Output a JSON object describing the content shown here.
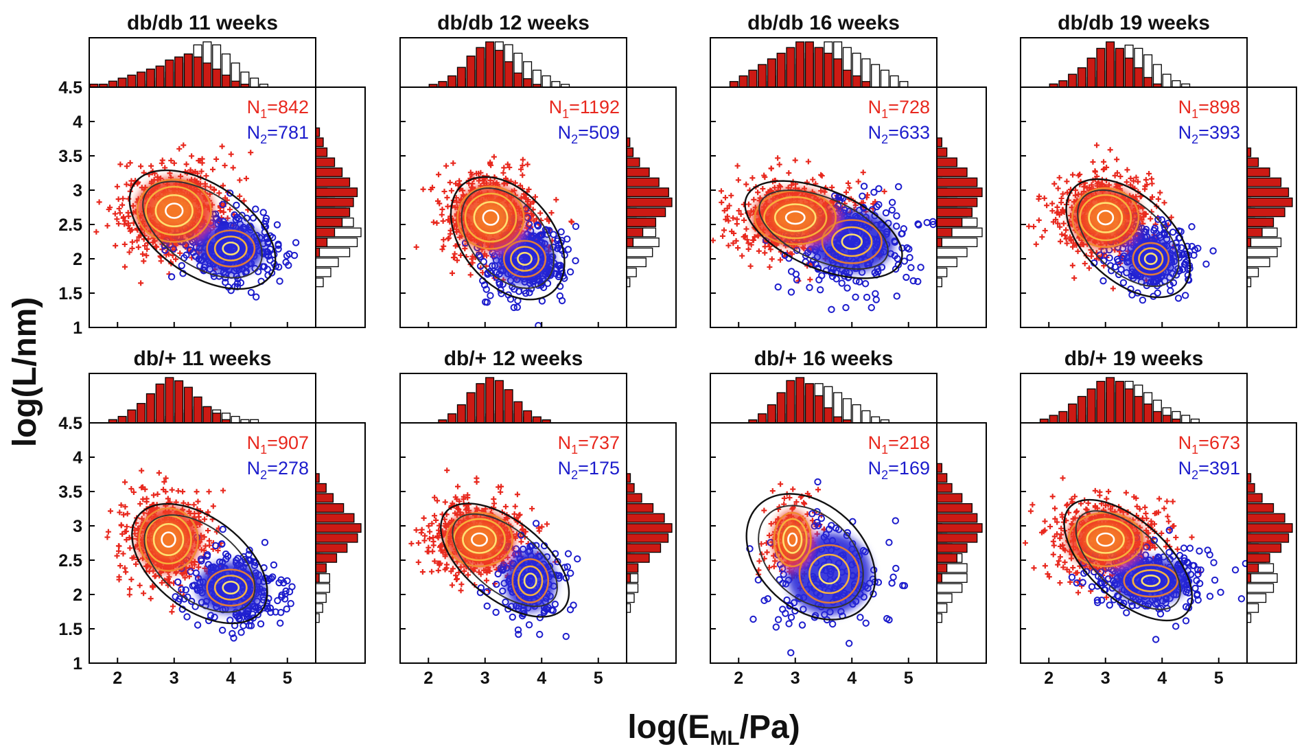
{
  "figure": {
    "ylabel": "log(L/nm)",
    "xlabel": {
      "prefix": "log(E",
      "sub": "ML",
      "suffix": "/Pa)"
    },
    "xticks": [
      "2",
      "3",
      "4",
      "5"
    ],
    "yticks": [
      "1",
      "1.5",
      "2",
      "2.5",
      "3",
      "3.5",
      "4",
      "4.5"
    ]
  },
  "colors": {
    "group1": "#e8281e",
    "group2": "#1c1ccc",
    "hist1": "#cc1a14",
    "hist2": "#ffffff",
    "axis": "#000000",
    "contour_inner": "#ffe070",
    "contour_outer": "#111111"
  },
  "chart_data": [
    {
      "type": "scatter",
      "title": "db/db 11 weeks",
      "xlim": [
        1.5,
        5.5
      ],
      "ylim": [
        1,
        4.5
      ],
      "n1_label": "N",
      "n1_sub": "1",
      "n1_value": "=842",
      "n2_label": "N",
      "n2_sub": "2",
      "n2_value": "=781",
      "N1": 842,
      "N2": 781,
      "c1": [
        3.0,
        2.7
      ],
      "c2": [
        4.0,
        2.15
      ],
      "s1": [
        0.5,
        0.35
      ],
      "s2": [
        0.4,
        0.25
      ],
      "xhist1": [
        1,
        1,
        2,
        3,
        4,
        5,
        6,
        7,
        9,
        10,
        11,
        10,
        8,
        6,
        4,
        2,
        1,
        0,
        0,
        0,
        0,
        0,
        0,
        0
      ],
      "xhist2": [
        0,
        0,
        0,
        0,
        0,
        1,
        2,
        3,
        5,
        8,
        11,
        14,
        15,
        14,
        11,
        8,
        5,
        3,
        1,
        0,
        0,
        0,
        0,
        0
      ],
      "yhist1": [
        0,
        0,
        0,
        0,
        0,
        0,
        0,
        1,
        3,
        5,
        7,
        9,
        10,
        11,
        9,
        7,
        5,
        3,
        2,
        1,
        0,
        0,
        0,
        0
      ],
      "yhist2": [
        0,
        0,
        0,
        0,
        2,
        4,
        6,
        9,
        11,
        12,
        10,
        8,
        5,
        3,
        1,
        0,
        0,
        0,
        0,
        0,
        0,
        0,
        0,
        0
      ]
    },
    {
      "type": "scatter",
      "title": "db/db 12 weeks",
      "xlim": [
        1.5,
        5.5
      ],
      "ylim": [
        1,
        4.5
      ],
      "n1_label": "N",
      "n1_sub": "1",
      "n1_value": "=1192",
      "n2_label": "N",
      "n2_sub": "2",
      "n2_value": "=509",
      "N1": 1192,
      "N2": 509,
      "c1": [
        3.1,
        2.6
      ],
      "c2": [
        3.7,
        2.0
      ],
      "s1": [
        0.45,
        0.35
      ],
      "s2": [
        0.35,
        0.25
      ],
      "xhist1": [
        0,
        0,
        0,
        1,
        2,
        4,
        7,
        11,
        14,
        16,
        13,
        9,
        5,
        3,
        1,
        0,
        0,
        0,
        0,
        0,
        0,
        0,
        0,
        0
      ],
      "xhist2": [
        0,
        0,
        0,
        0,
        0,
        1,
        3,
        6,
        10,
        14,
        16,
        15,
        12,
        9,
        6,
        4,
        2,
        1,
        0,
        0,
        0,
        0,
        0,
        0
      ],
      "yhist1": [
        0,
        0,
        0,
        0,
        0,
        0,
        0,
        0,
        2,
        5,
        9,
        12,
        14,
        13,
        10,
        7,
        4,
        2,
        1,
        0,
        0,
        0,
        0,
        0
      ],
      "yhist2": [
        0,
        0,
        0,
        0,
        1,
        3,
        6,
        8,
        10,
        9,
        6,
        3,
        1,
        0,
        0,
        0,
        0,
        0,
        0,
        0,
        0,
        0,
        0,
        0
      ]
    },
    {
      "type": "scatter",
      "title": "db/db 16 weeks",
      "xlim": [
        1.5,
        5.5
      ],
      "ylim": [
        1,
        4.5
      ],
      "n1_label": "N",
      "n1_sub": "1",
      "n1_value": "=728",
      "n2_label": "N",
      "n2_sub": "2",
      "n2_value": "=633",
      "N1": 728,
      "N2": 633,
      "c1": [
        3.0,
        2.6
      ],
      "c2": [
        4.0,
        2.25
      ],
      "s1": [
        0.55,
        0.3
      ],
      "s2": [
        0.5,
        0.3
      ],
      "xhist1": [
        0,
        0,
        1,
        2,
        3,
        4,
        5,
        6,
        7,
        8,
        8,
        7,
        6,
        5,
        3,
        2,
        1,
        0,
        0,
        0,
        0,
        0,
        0,
        0
      ],
      "xhist2": [
        0,
        0,
        0,
        0,
        0,
        1,
        2,
        3,
        4,
        5,
        6,
        7,
        8,
        8,
        7,
        6,
        5,
        4,
        3,
        2,
        1,
        0,
        0,
        0
      ],
      "yhist1": [
        0,
        0,
        0,
        0,
        0,
        0,
        0,
        0,
        1,
        3,
        5,
        7,
        8,
        9,
        8,
        6,
        4,
        2,
        1,
        0,
        0,
        0,
        0,
        0
      ],
      "yhist2": [
        0,
        0,
        0,
        0,
        1,
        2,
        4,
        6,
        8,
        9,
        8,
        6,
        4,
        2,
        1,
        0,
        0,
        0,
        0,
        0,
        0,
        0,
        0,
        0
      ]
    },
    {
      "type": "scatter",
      "title": "db/db 19 weeks",
      "xlim": [
        1.5,
        5.5
      ],
      "ylim": [
        1,
        4.5
      ],
      "n1_label": "N",
      "n1_sub": "1",
      "n1_value": "=898",
      "n2_label": "N",
      "n2_sub": "2",
      "n2_value": "=393",
      "N1": 898,
      "N2": 393,
      "c1": [
        3.0,
        2.6
      ],
      "c2": [
        3.8,
        2.0
      ],
      "s1": [
        0.45,
        0.33
      ],
      "s2": [
        0.3,
        0.22
      ],
      "xhist1": [
        0,
        0,
        0,
        1,
        2,
        4,
        6,
        9,
        12,
        14,
        12,
        9,
        6,
        3,
        1,
        0,
        0,
        0,
        0,
        0,
        0,
        0,
        0,
        0
      ],
      "xhist2": [
        0,
        0,
        0,
        0,
        0,
        0,
        1,
        3,
        5,
        8,
        11,
        13,
        12,
        10,
        7,
        4,
        2,
        1,
        0,
        0,
        0,
        0,
        0,
        0
      ],
      "yhist1": [
        0,
        0,
        0,
        0,
        0,
        0,
        0,
        0,
        1,
        4,
        7,
        10,
        12,
        11,
        9,
        6,
        3,
        1,
        0,
        0,
        0,
        0,
        0,
        0
      ],
      "yhist2": [
        0,
        0,
        0,
        0,
        1,
        3,
        6,
        8,
        9,
        8,
        5,
        2,
        1,
        0,
        0,
        0,
        0,
        0,
        0,
        0,
        0,
        0,
        0,
        0
      ]
    },
    {
      "type": "scatter",
      "title": "db/+ 11 weeks",
      "xlim": [
        1.5,
        5.5
      ],
      "ylim": [
        1,
        4.5
      ],
      "n1_label": "N",
      "n1_sub": "1",
      "n1_value": "=907",
      "n2_label": "N",
      "n2_sub": "2",
      "n2_value": "=278",
      "N1": 907,
      "N2": 278,
      "c1": [
        2.9,
        2.8
      ],
      "c2": [
        4.0,
        2.1
      ],
      "s1": [
        0.4,
        0.35
      ],
      "s2": [
        0.4,
        0.25
      ],
      "xhist1": [
        0,
        0,
        1,
        2,
        4,
        6,
        9,
        12,
        14,
        13,
        11,
        8,
        5,
        3,
        1,
        0,
        0,
        0,
        0,
        0,
        0,
        0,
        0,
        0
      ],
      "xhist2": [
        0,
        0,
        0,
        0,
        0,
        0,
        0,
        1,
        2,
        3,
        4,
        5,
        5,
        4,
        3,
        2,
        1,
        1,
        0,
        0,
        0,
        0,
        0,
        0
      ],
      "yhist1": [
        0,
        0,
        0,
        0,
        0,
        0,
        0,
        0,
        1,
        3,
        6,
        9,
        12,
        13,
        11,
        8,
        5,
        3,
        1,
        0,
        0,
        0,
        0,
        0
      ],
      "yhist2": [
        0,
        0,
        0,
        0,
        1,
        2,
        3,
        4,
        4,
        3,
        2,
        1,
        0,
        0,
        0,
        0,
        0,
        0,
        0,
        0,
        0,
        0,
        0,
        0
      ]
    },
    {
      "type": "scatter",
      "title": "db/+ 12 weeks",
      "xlim": [
        1.5,
        5.5
      ],
      "ylim": [
        1,
        4.5
      ],
      "n1_label": "N",
      "n1_sub": "1",
      "n1_value": "=737",
      "n2_label": "N",
      "n2_sub": "2",
      "n2_value": "=175",
      "N1": 737,
      "N2": 175,
      "c1": [
        2.9,
        2.8
      ],
      "c2": [
        3.8,
        2.2
      ],
      "s1": [
        0.45,
        0.3
      ],
      "s2": [
        0.3,
        0.3
      ],
      "xhist1": [
        0,
        0,
        0,
        0,
        1,
        3,
        6,
        10,
        13,
        15,
        14,
        11,
        7,
        4,
        2,
        1,
        0,
        0,
        0,
        0,
        0,
        0,
        0,
        0
      ],
      "xhist2": [
        0,
        0,
        0,
        0,
        0,
        0,
        0,
        1,
        2,
        3,
        4,
        4,
        3,
        2,
        1,
        1,
        0,
        0,
        0,
        0,
        0,
        0,
        0,
        0
      ],
      "yhist1": [
        0,
        0,
        0,
        0,
        0,
        0,
        0,
        0,
        1,
        3,
        6,
        9,
        11,
        12,
        10,
        7,
        4,
        2,
        1,
        0,
        0,
        0,
        0,
        0
      ],
      "yhist2": [
        0,
        0,
        0,
        0,
        0,
        1,
        2,
        3,
        3,
        3,
        2,
        1,
        0,
        0,
        0,
        0,
        0,
        0,
        0,
        0,
        0,
        0,
        0,
        0
      ]
    },
    {
      "type": "scatter",
      "title": "db/+ 16 weeks",
      "xlim": [
        1.5,
        5.5
      ],
      "ylim": [
        1,
        4.5
      ],
      "n1_label": "N",
      "n1_sub": "1",
      "n1_value": "=218",
      "n2_label": "N",
      "n2_sub": "2",
      "n2_value": "=169",
      "N1": 218,
      "N2": 169,
      "c1": [
        2.95,
        2.8
      ],
      "c2": [
        3.6,
        2.3
      ],
      "s1": [
        0.25,
        0.3
      ],
      "s2": [
        0.5,
        0.4
      ],
      "xhist1": [
        0,
        0,
        0,
        0,
        1,
        3,
        6,
        10,
        14,
        15,
        13,
        9,
        5,
        2,
        1,
        0,
        0,
        0,
        0,
        0,
        0,
        0,
        0,
        0
      ],
      "xhist2": [
        0,
        0,
        0,
        0,
        0,
        0,
        1,
        3,
        6,
        9,
        12,
        13,
        12,
        10,
        8,
        6,
        4,
        2,
        1,
        0,
        0,
        0,
        0,
        0
      ],
      "yhist1": [
        0,
        0,
        0,
        0,
        0,
        0,
        0,
        0,
        1,
        2,
        4,
        6,
        8,
        9,
        8,
        7,
        5,
        3,
        2,
        1,
        0,
        0,
        0,
        0
      ],
      "yhist2": [
        0,
        0,
        0,
        0,
        1,
        2,
        3,
        5,
        6,
        6,
        5,
        3,
        2,
        1,
        0,
        0,
        0,
        0,
        0,
        0,
        0,
        0,
        0,
        0
      ]
    },
    {
      "type": "scatter",
      "title": "db/+ 19 weeks",
      "xlim": [
        1.5,
        5.5
      ],
      "ylim": [
        1,
        4.5
      ],
      "n1_label": "N",
      "n1_sub": "1",
      "n1_value": "=673",
      "n2_label": "N",
      "n2_sub": "2",
      "n2_value": "=391",
      "N1": 673,
      "N2": 391,
      "c1": [
        3.0,
        2.8
      ],
      "c2": [
        3.8,
        2.2
      ],
      "s1": [
        0.5,
        0.3
      ],
      "s2": [
        0.45,
        0.22
      ],
      "xhist1": [
        0,
        0,
        1,
        2,
        3,
        5,
        7,
        9,
        11,
        12,
        11,
        9,
        7,
        5,
        3,
        2,
        1,
        0,
        0,
        0,
        0,
        0,
        0,
        0
      ],
      "xhist2": [
        0,
        0,
        0,
        0,
        0,
        1,
        2,
        4,
        6,
        8,
        10,
        11,
        10,
        8,
        6,
        4,
        3,
        2,
        1,
        0,
        0,
        0,
        0,
        0
      ],
      "yhist1": [
        0,
        0,
        0,
        0,
        0,
        0,
        0,
        0,
        1,
        3,
        6,
        9,
        11,
        12,
        10,
        7,
        4,
        2,
        1,
        0,
        0,
        0,
        0,
        0
      ],
      "yhist2": [
        0,
        0,
        0,
        0,
        1,
        3,
        5,
        7,
        8,
        7,
        5,
        3,
        1,
        0,
        0,
        0,
        0,
        0,
        0,
        0,
        0,
        0,
        0,
        0
      ]
    }
  ]
}
